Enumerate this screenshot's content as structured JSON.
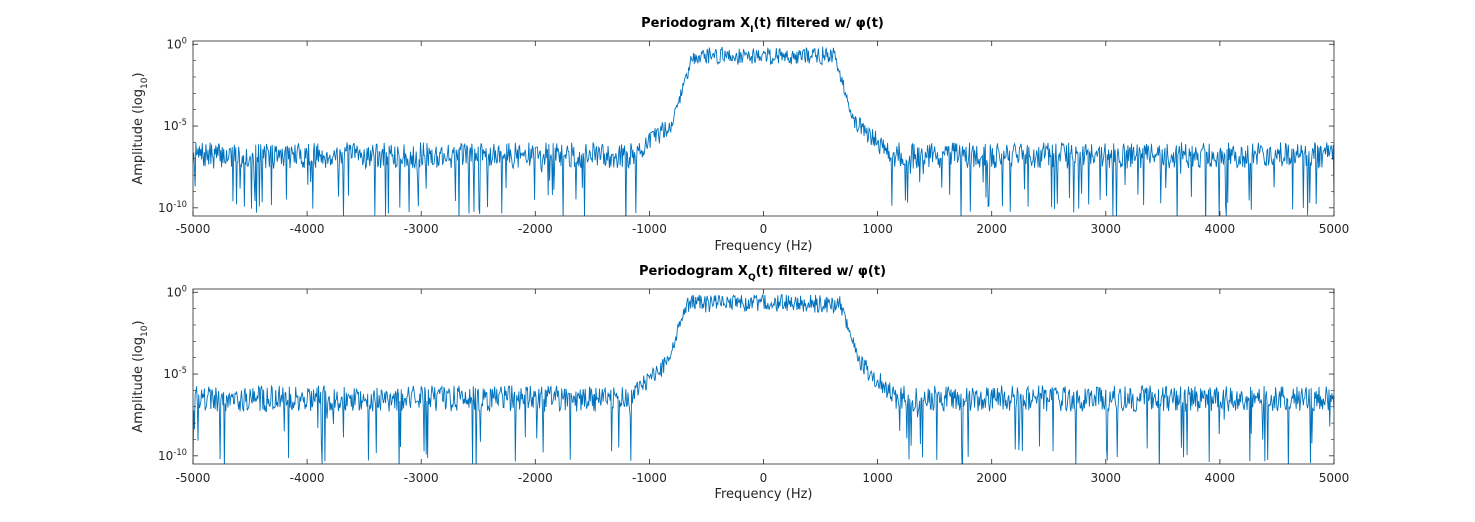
{
  "chart_data": [
    {
      "type": "line",
      "title": {
        "before": "Periodogram X",
        "sub": "I",
        "after": "(t) filtered w/ φ(t)"
      },
      "xlabel": "Frequency (Hz)",
      "ylabel": {
        "before": "Amplitude (log",
        "sub": "10",
        "after": ")"
      },
      "xlim": [
        -5000,
        5000
      ],
      "ylim_log10": [
        -10.5,
        0.2
      ],
      "y_scale": "log",
      "x_ticks": [
        -5000,
        -4000,
        -3000,
        -2000,
        -1000,
        0,
        1000,
        2000,
        3000,
        4000,
        5000
      ],
      "y_ticks": [
        {
          "exp": -10,
          "label": "10",
          "sup": "-10"
        },
        {
          "exp": -5,
          "label": "10",
          "sup": "-5"
        },
        {
          "exp": 0,
          "label": "10",
          "sup": "0"
        }
      ],
      "grid": false,
      "series": [
        {
          "color": "#0072BD",
          "passband_hz": [
            -700,
            700
          ],
          "passband_level_log10": -0.7,
          "transition_level_log10": -4.8,
          "noise_floor_log10": -6.8,
          "min_dip_log10": -10.5,
          "seed": 7
        }
      ]
    },
    {
      "type": "line",
      "title": {
        "before": "Periodogram X",
        "sub": "Q",
        "after": "(t) filtered w/ φ(t)"
      },
      "xlabel": "Frequency (Hz)",
      "ylabel": {
        "before": "Amplitude (log",
        "sub": "10",
        "after": ")"
      },
      "xlim": [
        -5000,
        5000
      ],
      "ylim_log10": [
        -10.5,
        0.2
      ],
      "y_scale": "log",
      "x_ticks": [
        -5000,
        -4000,
        -3000,
        -2000,
        -1000,
        0,
        1000,
        2000,
        3000,
        4000,
        5000
      ],
      "y_ticks": [
        {
          "exp": -10,
          "label": "10",
          "sup": "-10"
        },
        {
          "exp": -5,
          "label": "10",
          "sup": "-5"
        },
        {
          "exp": 0,
          "label": "10",
          "sup": "0"
        }
      ],
      "grid": false,
      "series": [
        {
          "color": "#0072BD",
          "passband_hz": [
            -750,
            750
          ],
          "passband_level_log10": -0.7,
          "transition_level_log10": -4.4,
          "noise_floor_log10": -6.5,
          "min_dip_log10": -10.5,
          "seed": 19
        }
      ]
    }
  ]
}
